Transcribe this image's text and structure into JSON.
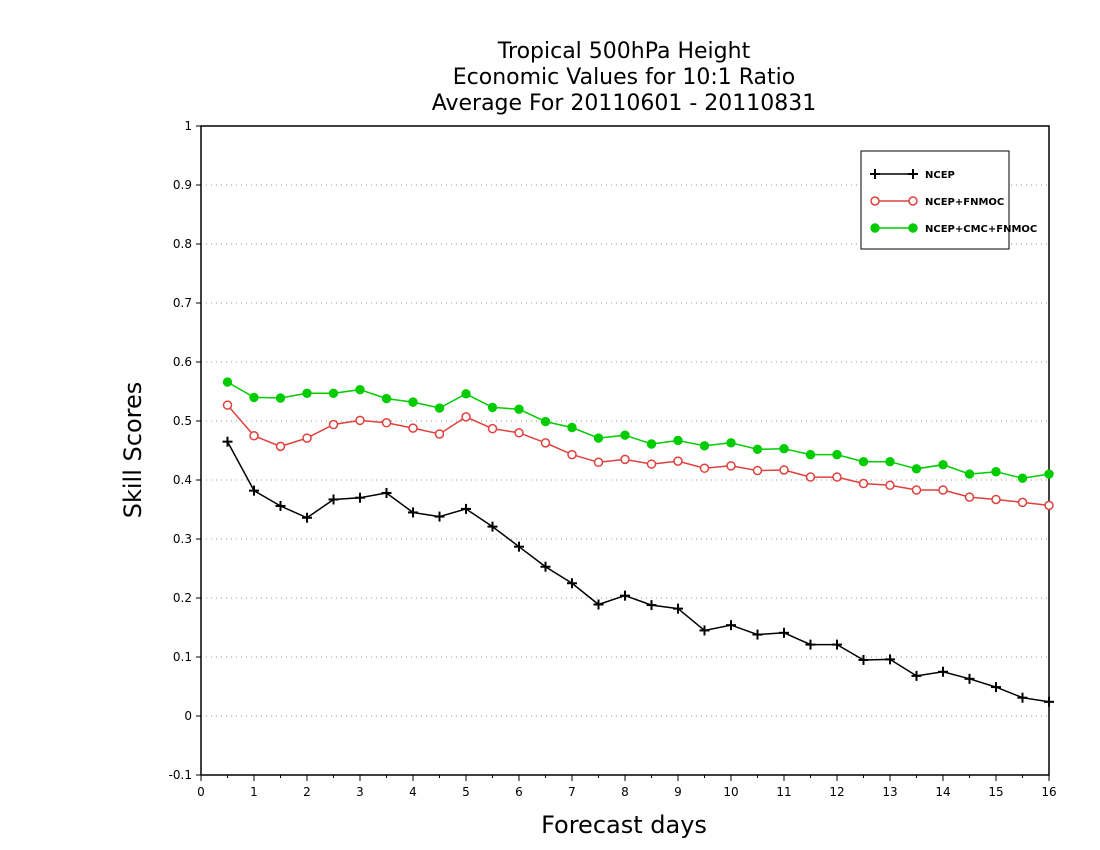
{
  "chart_data": {
    "type": "line",
    "title": [
      "Tropical 500hPa Height",
      "Economic Values for 10:1 Ratio",
      "Average For 20110601 - 20110831"
    ],
    "xlabel": "Forecast days",
    "ylabel": "Skill Scores",
    "xlim": [
      0,
      16
    ],
    "ylim": [
      -0.1,
      1
    ],
    "xticks": [
      "0",
      "1",
      "2",
      "3",
      "4",
      "5",
      "6",
      "7",
      "8",
      "9",
      "10",
      "11",
      "12",
      "13",
      "14",
      "15",
      "16"
    ],
    "yticks": [
      "-0.1",
      "0",
      "0.1",
      "0.2",
      "0.3",
      "0.4",
      "0.5",
      "0.6",
      "0.7",
      "0.8",
      "0.9",
      "1"
    ],
    "grid": "horizontal dotted",
    "legend_position": "top-right",
    "x": [
      0.5,
      1,
      1.5,
      2,
      2.5,
      3,
      3.5,
      4,
      4.5,
      5,
      5.5,
      6,
      6.5,
      7,
      7.5,
      8,
      8.5,
      9,
      9.5,
      10,
      10.5,
      11,
      11.5,
      12,
      12.5,
      13,
      13.5,
      14,
      14.5,
      15,
      15.5,
      16
    ],
    "series": [
      {
        "name": "NCEP",
        "color": "#000000",
        "marker": "plus",
        "values": [
          0.465,
          0.382,
          0.356,
          0.336,
          0.367,
          0.37,
          0.378,
          0.345,
          0.338,
          0.351,
          0.321,
          0.287,
          0.253,
          0.225,
          0.189,
          0.204,
          0.188,
          0.182,
          0.145,
          0.154,
          0.138,
          0.141,
          0.121,
          0.121,
          0.095,
          0.096,
          0.068,
          0.075,
          0.063,
          0.049,
          0.031,
          0.024
        ]
      },
      {
        "name": "NCEP+FNMOC",
        "color": "#e0403c",
        "marker": "open-circle",
        "values": [
          0.527,
          0.475,
          0.457,
          0.471,
          0.494,
          0.501,
          0.497,
          0.488,
          0.478,
          0.507,
          0.487,
          0.48,
          0.463,
          0.443,
          0.43,
          0.435,
          0.427,
          0.432,
          0.42,
          0.424,
          0.416,
          0.417,
          0.405,
          0.405,
          0.394,
          0.391,
          0.383,
          0.383,
          0.371,
          0.367,
          0.362,
          0.357
        ]
      },
      {
        "name": "NCEP+CMC+FNMOC",
        "color": "#00cc00",
        "marker": "filled-circle",
        "values": [
          0.566,
          0.54,
          0.539,
          0.547,
          0.547,
          0.553,
          0.538,
          0.532,
          0.522,
          0.546,
          0.523,
          0.52,
          0.499,
          0.489,
          0.471,
          0.476,
          0.461,
          0.467,
          0.458,
          0.463,
          0.452,
          0.453,
          0.443,
          0.443,
          0.431,
          0.431,
          0.419,
          0.426,
          0.41,
          0.414,
          0.403,
          0.41
        ]
      }
    ]
  }
}
